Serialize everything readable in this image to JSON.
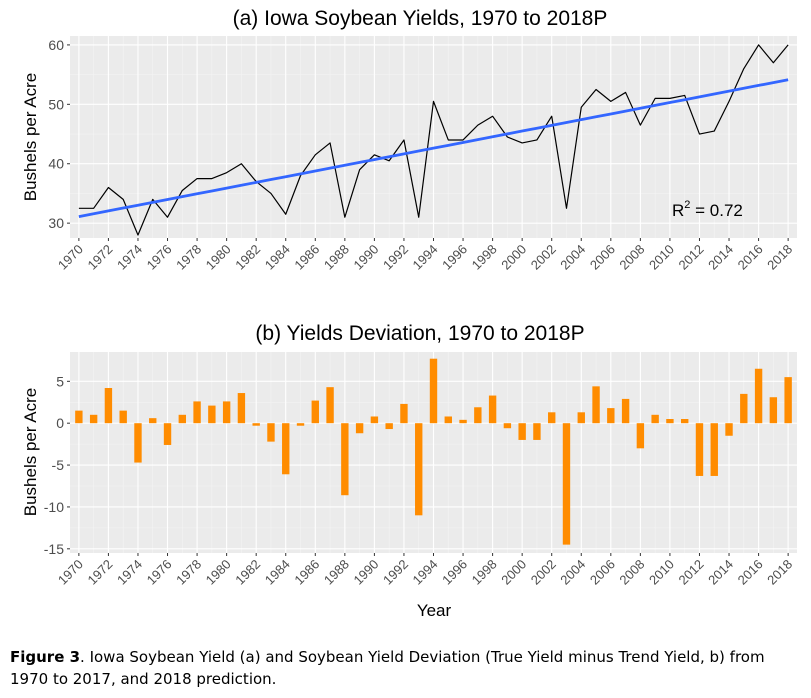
{
  "chart_data": [
    {
      "type": "line",
      "title": "(a) Iowa Soybean Yields, 1970 to 2018P",
      "xlabel": "",
      "ylabel": "Bushels per Acre",
      "x": [
        1970,
        1971,
        1972,
        1973,
        1974,
        1975,
        1976,
        1977,
        1978,
        1979,
        1980,
        1981,
        1982,
        1983,
        1984,
        1985,
        1986,
        1987,
        1988,
        1989,
        1990,
        1991,
        1992,
        1993,
        1994,
        1995,
        1996,
        1997,
        1998,
        1999,
        2000,
        2001,
        2002,
        2003,
        2004,
        2005,
        2006,
        2007,
        2008,
        2009,
        2010,
        2011,
        2012,
        2013,
        2014,
        2015,
        2016,
        2017,
        2018
      ],
      "x_ticks": [
        "1970",
        "1972",
        "1974",
        "1976",
        "1978",
        "1980",
        "1982",
        "1984",
        "1986",
        "1988",
        "1990",
        "1992",
        "1994",
        "1996",
        "1998",
        "2000",
        "2002",
        "2004",
        "2006",
        "2008",
        "2010",
        "2012",
        "2014",
        "2016",
        "2018"
      ],
      "y_ticks": [
        "30",
        "40",
        "50",
        "60"
      ],
      "ylim": [
        27.5,
        61.5
      ],
      "grid": true,
      "series": [
        {
          "values": [
            32.5,
            32.5,
            36,
            34,
            28,
            34,
            31,
            35.5,
            37.5,
            37.5,
            38.5,
            40,
            37,
            35,
            31.5,
            38,
            41.5,
            43.5,
            31,
            39,
            41.5,
            40.5,
            44,
            31,
            50.5,
            44,
            44,
            46.5,
            48,
            44.5,
            43.5,
            44,
            48,
            32.5,
            49.5,
            52.5,
            50.5,
            52,
            46.5,
            51,
            51,
            51.5,
            45,
            45.5,
            50.5,
            56,
            60,
            57,
            60
          ],
          "color": "#000000"
        },
        {
          "values": [
            31.1,
            31.58,
            32.06,
            32.54,
            33.02,
            33.5,
            33.98,
            34.46,
            34.94,
            35.42,
            35.9,
            36.38,
            36.86,
            37.34,
            37.82,
            38.3,
            38.78,
            39.26,
            39.74,
            40.22,
            40.7,
            41.18,
            41.66,
            42.14,
            42.62,
            43.1,
            43.58,
            44.06,
            44.54,
            45.02,
            45.5,
            45.98,
            46.46,
            46.94,
            47.42,
            47.9,
            48.38,
            48.86,
            49.34,
            49.82,
            50.3,
            50.78,
            51.26,
            51.74,
            52.22,
            52.7,
            53.18,
            53.66,
            54.14
          ],
          "color": "#3366FF"
        }
      ],
      "annotation": {
        "base": "R",
        "sup": "2",
        "rest": " = 0.72"
      }
    },
    {
      "type": "bar",
      "title": "(b) Yields Deviation, 1970 to 2018P",
      "xlabel": "Year",
      "ylabel": "Bushels per Acre",
      "x": [
        1970,
        1971,
        1972,
        1973,
        1974,
        1975,
        1976,
        1977,
        1978,
        1979,
        1980,
        1981,
        1982,
        1983,
        1984,
        1985,
        1986,
        1987,
        1988,
        1989,
        1990,
        1991,
        1992,
        1993,
        1994,
        1995,
        1996,
        1997,
        1998,
        1999,
        2000,
        2001,
        2002,
        2003,
        2004,
        2005,
        2006,
        2007,
        2008,
        2009,
        2010,
        2011,
        2012,
        2013,
        2014,
        2015,
        2016,
        2017,
        2018
      ],
      "values": [
        1.5,
        1,
        4.2,
        1.5,
        -4.7,
        0.6,
        -2.6,
        1,
        2.6,
        2.1,
        2.6,
        3.6,
        -0.3,
        -2.2,
        -6.1,
        -0.3,
        2.7,
        4.3,
        -8.6,
        -1.2,
        0.8,
        -0.7,
        2.3,
        -11,
        7.7,
        0.8,
        0.4,
        1.9,
        3.3,
        -0.6,
        -2,
        -2,
        1.3,
        -14.5,
        1.3,
        4.4,
        1.8,
        2.9,
        -3,
        1,
        0.5,
        0.5,
        -6.3,
        -6.3,
        -1.5,
        3.5,
        6.5,
        3.1,
        5.5
      ],
      "x_ticks": [
        "1970",
        "1972",
        "1974",
        "1976",
        "1978",
        "1980",
        "1982",
        "1984",
        "1986",
        "1988",
        "1990",
        "1992",
        "1994",
        "1996",
        "1998",
        "2000",
        "2002",
        "2004",
        "2006",
        "2008",
        "2010",
        "2012",
        "2014",
        "2016",
        "2018"
      ],
      "y_ticks": [
        "-15",
        "-10",
        "-5",
        "0",
        "5"
      ],
      "ylim": [
        -15.5,
        8.5
      ],
      "grid": true,
      "color": "#FF8C00"
    }
  ],
  "caption": {
    "label": "Figure 3",
    "text": ". Iowa Soybean Yield (a) and Soybean Yield Deviation (True Yield minus Trend Yield, b) from 1970 to 2017, and 2018 prediction."
  }
}
